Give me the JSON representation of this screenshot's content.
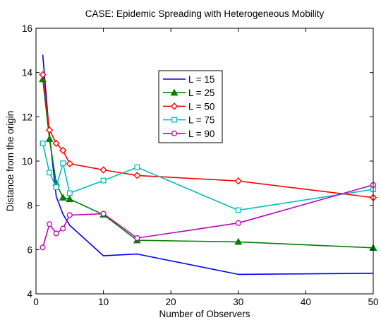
{
  "chart_data": {
    "type": "line",
    "title": "CASE: Epidemic Spreading with Heterogeneous Mobility",
    "xlabel": "Number of Observers",
    "ylabel": "Distance from the origin",
    "xlim": [
      0,
      50
    ],
    "ylim": [
      4,
      16
    ],
    "xticks": [
      "0",
      "10",
      "20",
      "30",
      "40",
      "50"
    ],
    "yticks": [
      "4",
      "6",
      "8",
      "10",
      "12",
      "14",
      "16"
    ],
    "grid": false,
    "legend_position": "upper-center",
    "x": [
      1,
      2,
      3,
      4,
      5,
      10,
      15,
      30,
      50
    ],
    "series": [
      {
        "name": "L = 15",
        "color": "#0000ff",
        "marker": "none",
        "values": [
          14.8,
          11.2,
          8.4,
          7.6,
          7.1,
          5.72,
          5.8,
          4.88,
          4.93
        ]
      },
      {
        "name": "L = 25",
        "color": "#008000",
        "marker": "triangle",
        "values": [
          13.7,
          11.0,
          9.0,
          8.35,
          8.28,
          7.58,
          6.42,
          6.35,
          6.08
        ]
      },
      {
        "name": "L = 50",
        "color": "#ff0000",
        "marker": "diamond",
        "values": [
          13.9,
          11.4,
          10.8,
          10.48,
          9.88,
          9.6,
          9.35,
          9.1,
          8.35
        ]
      },
      {
        "name": "L = 75",
        "color": "#00bfbf",
        "marker": "square",
        "values": [
          10.8,
          9.48,
          8.82,
          9.9,
          8.55,
          9.12,
          9.72,
          7.78,
          8.72
        ]
      },
      {
        "name": "L = 90",
        "color": "#bf00bf",
        "marker": "circle",
        "values": [
          6.1,
          7.15,
          6.73,
          6.95,
          7.56,
          7.62,
          6.52,
          7.2,
          8.92
        ]
      }
    ]
  }
}
